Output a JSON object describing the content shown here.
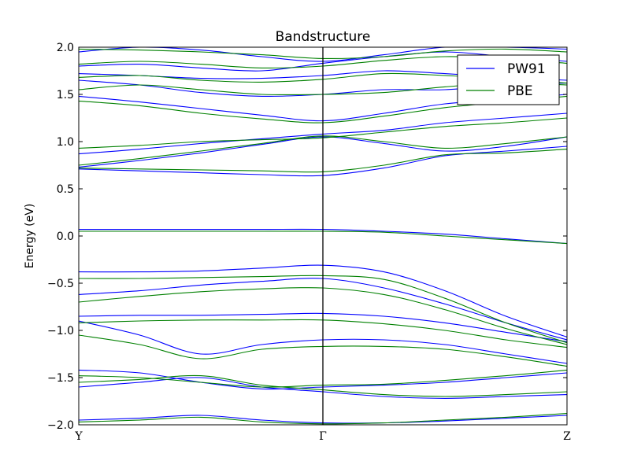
{
  "chart_data": {
    "type": "line",
    "title": "Bandstructure",
    "xlabel": "",
    "ylabel": "Energy (eV)",
    "ylim": [
      -2.0,
      2.0
    ],
    "yticks": [
      "−2.0",
      "−1.5",
      "−1.0",
      "−0.5",
      "0.0",
      "0.5",
      "1.0",
      "1.5",
      "2.0"
    ],
    "ytick_values": [
      -2.0,
      -1.5,
      -1.0,
      -0.5,
      0.0,
      0.5,
      1.0,
      1.5,
      2.0
    ],
    "kpoints": [
      {
        "label": "Y",
        "k": 0.0
      },
      {
        "label": "Γ",
        "k": 0.5
      },
      {
        "label": "Z",
        "k": 1.0
      }
    ],
    "k_sample": [
      0,
      0.125,
      0.25,
      0.375,
      0.5,
      0.625,
      0.75,
      0.875,
      1.0
    ],
    "legend_position": "top-right",
    "series": [
      {
        "name": "PW91",
        "color": "#0000ff",
        "bands": [
          [
            -1.95,
            -1.93,
            -1.9,
            -1.95,
            -1.98,
            -1.98,
            -1.96,
            -1.93,
            -1.9
          ],
          [
            -1.6,
            -1.55,
            -1.5,
            -1.6,
            -1.65,
            -1.7,
            -1.72,
            -1.7,
            -1.68
          ],
          [
            -1.42,
            -1.45,
            -1.55,
            -1.62,
            -1.6,
            -1.58,
            -1.55,
            -1.5,
            -1.45
          ],
          [
            -0.9,
            -1.05,
            -1.25,
            -1.15,
            -1.1,
            -1.1,
            -1.15,
            -1.25,
            -1.35
          ],
          [
            -0.85,
            -0.84,
            -0.84,
            -0.83,
            -0.82,
            -0.85,
            -0.92,
            -1.02,
            -1.12
          ],
          [
            -0.62,
            -0.58,
            -0.52,
            -0.48,
            -0.45,
            -0.55,
            -0.72,
            -0.92,
            -1.1
          ],
          [
            -0.38,
            -0.38,
            -0.37,
            -0.34,
            -0.31,
            -0.38,
            -0.58,
            -0.85,
            -1.07
          ],
          [
            0.07,
            0.07,
            0.07,
            0.07,
            0.07,
            0.05,
            0.02,
            -0.03,
            -0.08
          ],
          [
            0.71,
            0.69,
            0.67,
            0.65,
            0.64,
            0.72,
            0.85,
            0.9,
            0.95
          ],
          [
            0.73,
            0.8,
            0.88,
            0.97,
            1.05,
            0.98,
            0.9,
            0.95,
            1.05
          ],
          [
            0.87,
            0.92,
            0.98,
            1.03,
            1.08,
            1.12,
            1.2,
            1.25,
            1.3
          ],
          [
            1.48,
            1.42,
            1.35,
            1.28,
            1.22,
            1.3,
            1.4,
            1.45,
            1.5
          ],
          [
            1.65,
            1.6,
            1.52,
            1.48,
            1.5,
            1.55,
            1.55,
            1.6,
            1.62
          ],
          [
            1.72,
            1.7,
            1.67,
            1.67,
            1.7,
            1.75,
            1.72,
            1.68,
            1.65
          ],
          [
            1.8,
            1.82,
            1.78,
            1.75,
            1.83,
            1.9,
            1.95,
            1.9,
            1.85
          ],
          [
            1.95,
            2.0,
            1.97,
            1.9,
            1.85,
            1.92,
            2.0,
            2.0,
            1.98
          ]
        ]
      },
      {
        "name": "PBE",
        "color": "#008000",
        "bands": [
          [
            -1.97,
            -1.95,
            -1.92,
            -1.97,
            -1.99,
            -1.98,
            -1.95,
            -1.92,
            -1.88
          ],
          [
            -1.55,
            -1.52,
            -1.48,
            -1.58,
            -1.63,
            -1.68,
            -1.7,
            -1.68,
            -1.65
          ],
          [
            -1.48,
            -1.5,
            -1.55,
            -1.6,
            -1.58,
            -1.57,
            -1.53,
            -1.48,
            -1.42
          ],
          [
            -1.05,
            -1.15,
            -1.3,
            -1.2,
            -1.17,
            -1.17,
            -1.2,
            -1.28,
            -1.38
          ],
          [
            -0.92,
            -0.9,
            -0.89,
            -0.89,
            -0.89,
            -0.93,
            -1.0,
            -1.1,
            -1.18
          ],
          [
            -0.7,
            -0.64,
            -0.59,
            -0.56,
            -0.55,
            -0.62,
            -0.78,
            -0.98,
            -1.15
          ],
          [
            -0.45,
            -0.45,
            -0.44,
            -0.43,
            -0.42,
            -0.46,
            -0.66,
            -0.92,
            -1.13
          ],
          [
            0.05,
            0.05,
            0.05,
            0.05,
            0.05,
            0.04,
            0.0,
            -0.04,
            -0.08
          ],
          [
            0.72,
            0.71,
            0.7,
            0.69,
            0.68,
            0.75,
            0.86,
            0.88,
            0.92
          ],
          [
            0.75,
            0.82,
            0.9,
            0.98,
            1.06,
            1.0,
            0.93,
            0.98,
            1.05
          ],
          [
            0.93,
            0.96,
            1.0,
            1.02,
            1.04,
            1.1,
            1.16,
            1.2,
            1.25
          ],
          [
            1.43,
            1.38,
            1.3,
            1.24,
            1.2,
            1.27,
            1.36,
            1.42,
            1.48
          ],
          [
            1.55,
            1.6,
            1.55,
            1.5,
            1.5,
            1.52,
            1.58,
            1.62,
            1.6
          ],
          [
            1.68,
            1.7,
            1.65,
            1.63,
            1.66,
            1.72,
            1.7,
            1.66,
            1.62
          ],
          [
            1.82,
            1.85,
            1.82,
            1.78,
            1.8,
            1.86,
            1.9,
            1.88,
            1.83
          ],
          [
            1.98,
            1.97,
            1.95,
            1.92,
            1.88,
            1.9,
            1.96,
            1.98,
            1.95
          ]
        ]
      }
    ]
  }
}
